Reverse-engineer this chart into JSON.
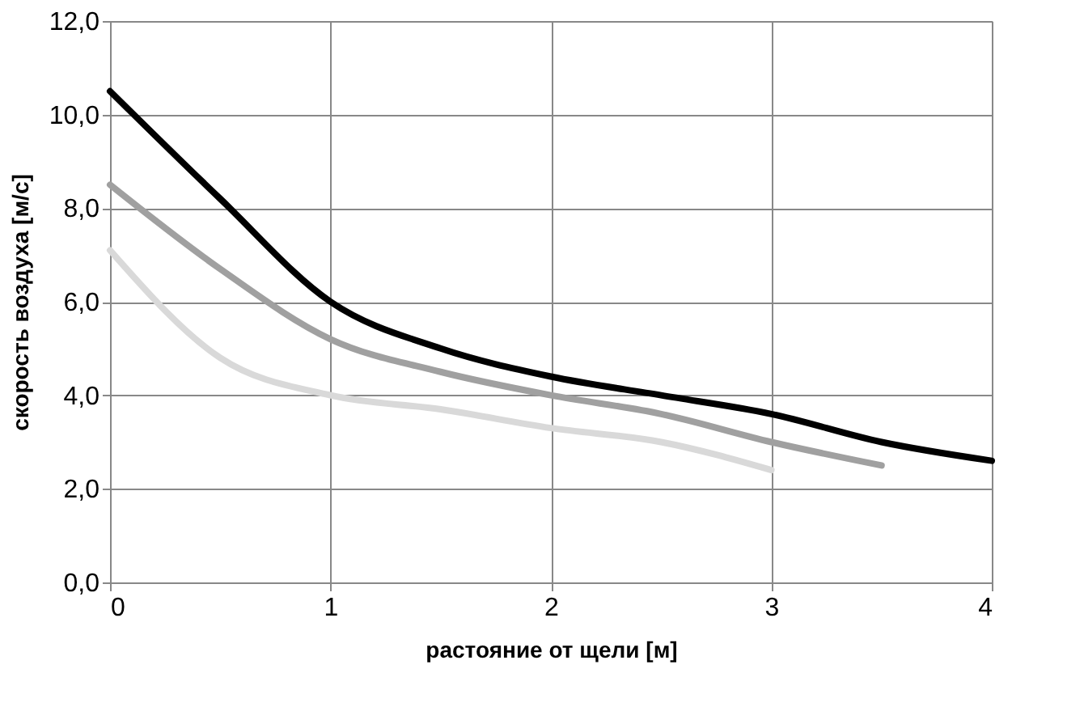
{
  "chart_data": {
    "type": "line",
    "xlabel": "растояние от щели [м]",
    "ylabel": "скорость воздуха [м/с]",
    "xlim": [
      0,
      4
    ],
    "xticks": [
      0,
      1,
      2,
      3,
      4
    ],
    "ylim": [
      0,
      12
    ],
    "yticks": [
      {
        "value": 0,
        "label": "0,0"
      },
      {
        "value": 2,
        "label": "2,0"
      },
      {
        "value": 4,
        "label": "4,0"
      },
      {
        "value": 6,
        "label": "6,0"
      },
      {
        "value": 8,
        "label": "8,0"
      },
      {
        "value": 10,
        "label": "10,0"
      },
      {
        "value": 12,
        "label": "12,0"
      }
    ],
    "grid": true,
    "legend": false,
    "marker": "none",
    "line_style": "solid",
    "series": [
      {
        "color": "#000000",
        "x": [
          0,
          0.5,
          1,
          1.5,
          2,
          2.5,
          3,
          3.5,
          4
        ],
        "values": [
          10.5,
          8.2,
          6.0,
          5.0,
          4.4,
          4.0,
          3.6,
          3.0,
          2.6
        ]
      },
      {
        "color": "#a0a0a0",
        "x": [
          0,
          0.5,
          1,
          1.5,
          2,
          2.5,
          3,
          3.5
        ],
        "values": [
          8.5,
          6.7,
          5.2,
          4.5,
          4.0,
          3.6,
          3.0,
          2.5
        ]
      },
      {
        "color": "#d9d9d9",
        "x": [
          0,
          0.5,
          1,
          1.5,
          2,
          2.5,
          3
        ],
        "values": [
          7.1,
          4.8,
          4.0,
          3.7,
          3.3,
          3.0,
          2.4
        ]
      }
    ]
  }
}
